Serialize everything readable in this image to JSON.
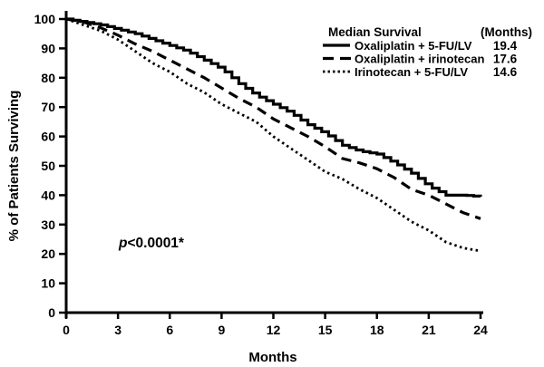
{
  "figure": {
    "background": "#ffffff",
    "ink_color": "#000000"
  },
  "chart_data": {
    "type": "line",
    "subtype": "kaplan-meier-survival-curves",
    "title": "",
    "xlabel": "Months",
    "ylabel": "% of Patients Surviving",
    "xlim": [
      0,
      24
    ],
    "ylim": [
      0,
      100
    ],
    "x_ticks": [
      0,
      3,
      6,
      9,
      12,
      15,
      18,
      21,
      24
    ],
    "y_ticks": [
      0,
      10,
      20,
      30,
      40,
      50,
      60,
      70,
      80,
      90,
      100
    ],
    "grid": false,
    "legend": {
      "position": "top-right",
      "header_left": "Median Survival",
      "header_right": "(Months)"
    },
    "x_months": [
      0,
      1,
      2,
      3,
      4,
      5,
      6,
      7,
      8,
      9,
      10,
      11,
      12,
      13,
      14,
      15,
      16,
      17,
      18,
      19,
      20,
      21,
      22,
      23,
      24
    ],
    "series": [
      {
        "name": "Oxaliplatin + 5-FU/LV",
        "line_style": "solid",
        "median_months": "19.4",
        "values": [
          100,
          99,
          98,
          96.5,
          95,
          93,
          91,
          89,
          86,
          83,
          78,
          74,
          71,
          68,
          64,
          61,
          57,
          55,
          54,
          51,
          47.5,
          43,
          40,
          40,
          39.5
        ]
      },
      {
        "name": "Oxaliplatin + irinotecan",
        "line_style": "dashed",
        "median_months": "17.6",
        "values": [
          100,
          99,
          97,
          94.5,
          91.5,
          89,
          86,
          83,
          80,
          76.5,
          73,
          70,
          66,
          63,
          60,
          56.5,
          52.5,
          51,
          49,
          46,
          42,
          40,
          37,
          34,
          32
        ]
      },
      {
        "name": "Irinotecan + 5-FU/LV",
        "line_style": "dotted",
        "median_months": "14.6",
        "values": [
          100,
          98,
          96,
          93,
          89,
          85,
          82,
          78,
          75,
          71,
          68,
          65,
          60,
          56,
          52,
          48,
          45.5,
          42,
          39,
          35,
          31,
          28,
          24,
          22,
          21
        ]
      }
    ],
    "annotations": [
      {
        "italic_prefix": "p",
        "rest": "<0.0001*",
        "x_month": 3.05,
        "y_percent": 22.5
      }
    ]
  }
}
